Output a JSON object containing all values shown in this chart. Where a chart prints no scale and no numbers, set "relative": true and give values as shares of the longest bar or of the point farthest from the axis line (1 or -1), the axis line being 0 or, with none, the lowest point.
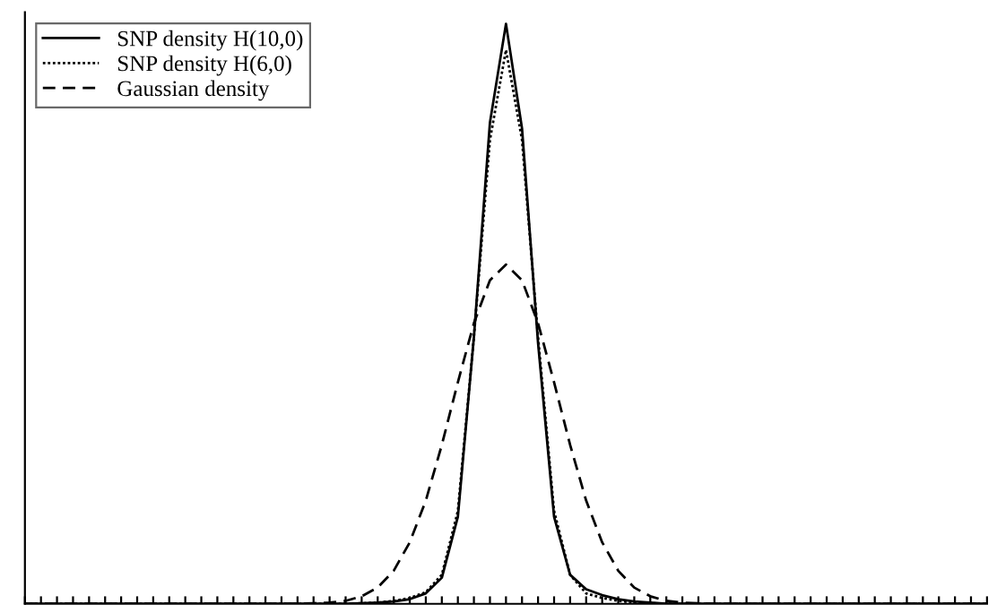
{
  "chart_data": {
    "type": "line",
    "relative": true,
    "categories": [
      null,
      null,
      null,
      null,
      null,
      null,
      null,
      null,
      null,
      null,
      null,
      null,
      null,
      null,
      null,
      null,
      null,
      null,
      null,
      null,
      null,
      null,
      null,
      null,
      null,
      null,
      null,
      null,
      null,
      null,
      null,
      null,
      null,
      null,
      null,
      null,
      null,
      null,
      null,
      null,
      null,
      null,
      null,
      null,
      null,
      null,
      null,
      null,
      null,
      null,
      null,
      null,
      null,
      null,
      null,
      null,
      null,
      null,
      null,
      null,
      null
    ],
    "series": [
      {
        "name": "SNP density H(10,0)",
        "color": "#000000",
        "line_style": "solid",
        "values": [
          0,
          0,
          0,
          0,
          0,
          0,
          0,
          0,
          0,
          0,
          0,
          0,
          0,
          0,
          0,
          0,
          0,
          0,
          0,
          0,
          0,
          0.001,
          0.002,
          0.004,
          0.008,
          0.018,
          0.045,
          0.15,
          0.46,
          0.83,
          1.0,
          0.82,
          0.45,
          0.15,
          0.05,
          0.025,
          0.015,
          0.008,
          0.004,
          0.002,
          0,
          0,
          0,
          0,
          0,
          0,
          0,
          0,
          0,
          0,
          0,
          0,
          0,
          0,
          0,
          0,
          0,
          0,
          0,
          0,
          0
        ]
      },
      {
        "name": "SNP density H(6,0)",
        "color": "#000000",
        "line_style": "dotted",
        "values": [
          0,
          0,
          0,
          0,
          0,
          0,
          0,
          0,
          0,
          0,
          0,
          0,
          0,
          0,
          0,
          0,
          0,
          0,
          0,
          0,
          0,
          0.001,
          0.002,
          0.005,
          0.01,
          0.02,
          0.05,
          0.16,
          0.46,
          0.8,
          0.955,
          0.8,
          0.46,
          0.16,
          0.05,
          0.018,
          0.01,
          0.005,
          0.002,
          0.001,
          0,
          0,
          0,
          0,
          0,
          0,
          0,
          0,
          0,
          0,
          0,
          0,
          0,
          0,
          0,
          0,
          0,
          0,
          0,
          0,
          0
        ]
      },
      {
        "name": "Gaussian density",
        "color": "#000000",
        "line_style": "dashed",
        "values": [
          0,
          0,
          0,
          0,
          0,
          0,
          0,
          0,
          0,
          0,
          0,
          0,
          0,
          0,
          0,
          0,
          0,
          0,
          0.001,
          0.002,
          0.005,
          0.013,
          0.028,
          0.057,
          0.106,
          0.178,
          0.274,
          0.382,
          0.484,
          0.558,
          0.585,
          0.558,
          0.484,
          0.382,
          0.274,
          0.178,
          0.106,
          0.057,
          0.028,
          0.013,
          0.005,
          0.002,
          0.001,
          0,
          0,
          0,
          0,
          0,
          0,
          0,
          0,
          0,
          0,
          0,
          0,
          0,
          0,
          0,
          0,
          0,
          0
        ]
      }
    ],
    "legend": "top left"
  }
}
